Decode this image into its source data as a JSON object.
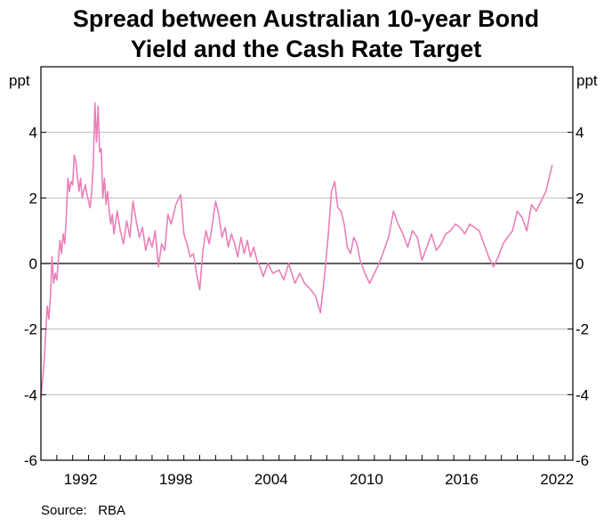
{
  "chart_data": {
    "type": "line",
    "title_lines": [
      "Spread between Australian 10-year Bond",
      "Yield and the Cash Rate Target"
    ],
    "ylabel_left": "ppt",
    "ylabel_right": "ppt",
    "source_label": "Source:",
    "source_value": "RBA",
    "xlim": [
      1990.0,
      2023.5
    ],
    "ylim": [
      -6,
      6
    ],
    "xticks": [
      1992,
      1998,
      2004,
      2010,
      2016,
      2022
    ],
    "yticks": [
      -6,
      -4,
      -2,
      0,
      2,
      4
    ],
    "grid": "horizontal",
    "zero_line": true,
    "line_color": "#e97fb8",
    "series": [
      {
        "x": [
          1990.0,
          1990.2,
          1990.4,
          1990.5,
          1990.6,
          1990.7,
          1990.8,
          1990.9,
          1991.0,
          1991.1,
          1991.2,
          1991.3,
          1991.4,
          1991.5,
          1991.6,
          1991.7,
          1991.8,
          1991.9,
          1992.0,
          1992.1,
          1992.2,
          1992.4,
          1992.5,
          1992.6,
          1992.8,
          1992.9,
          1993.0,
          1993.1,
          1993.2,
          1993.3,
          1993.4,
          1993.5,
          1993.6,
          1993.7,
          1993.8,
          1993.9,
          1994.0,
          1994.1,
          1994.2,
          1994.3,
          1994.4,
          1994.5,
          1994.6,
          1994.8,
          1995.0,
          1995.2,
          1995.4,
          1995.6,
          1995.8,
          1996.0,
          1996.2,
          1996.4,
          1996.6,
          1996.8,
          1997.0,
          1997.2,
          1997.4,
          1997.6,
          1997.8,
          1998.0,
          1998.2,
          1998.5,
          1998.8,
          1999.0,
          1999.2,
          1999.4,
          1999.6,
          1999.8,
          2000.0,
          2000.2,
          2000.4,
          2000.6,
          2000.8,
          2001.0,
          2001.2,
          2001.4,
          2001.6,
          2001.8,
          2002.0,
          2002.2,
          2002.4,
          2002.6,
          2002.8,
          2003.0,
          2003.2,
          2003.4,
          2003.6,
          2003.8,
          2004.0,
          2004.3,
          2004.6,
          2005.0,
          2005.3,
          2005.6,
          2006.0,
          2006.3,
          2006.6,
          2007.0,
          2007.3,
          2007.6,
          2007.9,
          2008.1,
          2008.3,
          2008.5,
          2008.7,
          2008.9,
          2009.1,
          2009.3,
          2009.5,
          2009.7,
          2009.9,
          2010.1,
          2010.4,
          2010.7,
          2011.0,
          2011.3,
          2011.6,
          2011.9,
          2012.2,
          2012.5,
          2012.8,
          2013.1,
          2013.4,
          2013.7,
          2014.0,
          2014.3,
          2014.6,
          2014.9,
          2015.2,
          2015.5,
          2015.8,
          2016.1,
          2016.4,
          2016.7,
          2017.0,
          2017.3,
          2017.6,
          2017.9,
          2018.2,
          2018.5,
          2018.8,
          2019.1,
          2019.4,
          2019.7,
          2020.0,
          2020.3,
          2020.6,
          2020.9,
          2021.2,
          2021.5,
          2021.8,
          2022.0,
          2022.2
        ],
        "values": [
          -4.1,
          -3.0,
          -1.3,
          -1.7,
          -1.0,
          0.2,
          -0.6,
          -0.3,
          -0.5,
          0.1,
          0.7,
          0.3,
          0.9,
          0.6,
          1.5,
          2.6,
          2.2,
          2.5,
          2.4,
          3.3,
          3.1,
          2.2,
          2.6,
          2.0,
          2.4,
          2.1,
          1.9,
          1.7,
          2.2,
          3.0,
          4.9,
          3.7,
          4.8,
          3.4,
          3.5,
          2.0,
          2.6,
          1.8,
          2.2,
          1.6,
          1.2,
          1.5,
          0.9,
          1.6,
          1.0,
          0.6,
          1.3,
          0.8,
          1.9,
          1.3,
          0.8,
          1.1,
          0.4,
          0.8,
          0.5,
          1.0,
          -0.1,
          0.6,
          0.4,
          1.5,
          1.2,
          1.8,
          2.1,
          0.9,
          0.6,
          0.2,
          0.3,
          -0.3,
          -0.8,
          0.4,
          1.0,
          0.6,
          1.2,
          1.9,
          1.5,
          0.8,
          1.1,
          0.5,
          0.9,
          0.6,
          0.2,
          0.8,
          0.3,
          0.7,
          0.2,
          0.5,
          0.1,
          -0.1,
          -0.4,
          0.0,
          -0.3,
          -0.2,
          -0.5,
          0.0,
          -0.6,
          -0.3,
          -0.6,
          -0.8,
          -1.0,
          -1.5,
          -0.2,
          0.9,
          2.2,
          2.5,
          1.7,
          1.6,
          1.2,
          0.5,
          0.3,
          0.8,
          0.6,
          0.1,
          -0.3,
          -0.6,
          -0.3,
          0.0,
          0.4,
          0.8,
          1.6,
          1.2,
          0.9,
          0.5,
          1.0,
          0.8,
          0.1,
          0.5,
          0.9,
          0.4,
          0.6,
          0.9,
          1.0,
          1.2,
          1.1,
          0.9,
          1.2,
          1.1,
          1.0,
          0.6,
          0.2,
          -0.1,
          0.2,
          0.6,
          0.8,
          1.0,
          1.6,
          1.4,
          1.0,
          1.8,
          1.6,
          1.9,
          2.2,
          2.6,
          3.0
        ]
      }
    ]
  }
}
